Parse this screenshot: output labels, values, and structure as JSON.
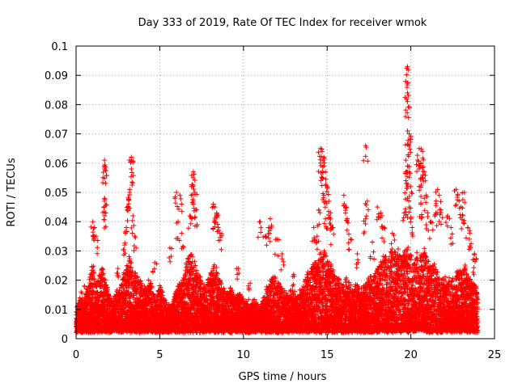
{
  "chart_data": {
    "type": "scatter",
    "title": "Day 333 of 2019, Rate Of TEC Index for receiver wmok",
    "xlabel": "GPS time / hours",
    "ylabel": "ROTI / TECUs",
    "xlim": [
      0,
      25
    ],
    "ylim": [
      0,
      0.1
    ],
    "x_ticks": [
      "0",
      "5",
      "10",
      "15",
      "20",
      "25"
    ],
    "y_ticks": [
      "0",
      "0.01",
      "0.02",
      "0.03",
      "0.04",
      "0.05",
      "0.06",
      "0.07",
      "0.08",
      "0.09",
      "0.1"
    ],
    "grid": true,
    "legend": "none",
    "marker": "+",
    "marker_color": "#ff0000",
    "baseline_points": [
      [
        0.0,
        0.009
      ],
      [
        0.2,
        0.014
      ],
      [
        0.4,
        0.011
      ],
      [
        0.6,
        0.016
      ],
      [
        0.8,
        0.021
      ],
      [
        1.0,
        0.026
      ],
      [
        1.2,
        0.019
      ],
      [
        1.4,
        0.022
      ],
      [
        1.6,
        0.025
      ],
      [
        1.8,
        0.018
      ],
      [
        2.0,
        0.015
      ],
      [
        2.2,
        0.013
      ],
      [
        2.4,
        0.017
      ],
      [
        2.6,
        0.016
      ],
      [
        2.8,
        0.021
      ],
      [
        3.0,
        0.024
      ],
      [
        3.2,
        0.028
      ],
      [
        3.4,
        0.026
      ],
      [
        3.6,
        0.022
      ],
      [
        3.8,
        0.02
      ],
      [
        4.0,
        0.018
      ],
      [
        4.2,
        0.017
      ],
      [
        4.4,
        0.021
      ],
      [
        4.6,
        0.016
      ],
      [
        4.8,
        0.014
      ],
      [
        5.0,
        0.019
      ],
      [
        5.2,
        0.015
      ],
      [
        5.4,
        0.012
      ],
      [
        5.6,
        0.011
      ],
      [
        5.8,
        0.013
      ],
      [
        6.0,
        0.017
      ],
      [
        6.2,
        0.019
      ],
      [
        6.4,
        0.02
      ],
      [
        6.6,
        0.026
      ],
      [
        6.8,
        0.03
      ],
      [
        7.0,
        0.028
      ],
      [
        7.2,
        0.024
      ],
      [
        7.4,
        0.021
      ],
      [
        7.6,
        0.018
      ],
      [
        7.8,
        0.019
      ],
      [
        8.0,
        0.022
      ],
      [
        8.2,
        0.026
      ],
      [
        8.4,
        0.024
      ],
      [
        8.6,
        0.021
      ],
      [
        8.8,
        0.018
      ],
      [
        9.0,
        0.016
      ],
      [
        9.2,
        0.017
      ],
      [
        9.4,
        0.015
      ],
      [
        9.6,
        0.014
      ],
      [
        9.8,
        0.016
      ],
      [
        10.0,
        0.014
      ],
      [
        10.2,
        0.012
      ],
      [
        10.4,
        0.011
      ],
      [
        10.6,
        0.013
      ],
      [
        10.8,
        0.012
      ],
      [
        11.0,
        0.011
      ],
      [
        11.2,
        0.015
      ],
      [
        11.4,
        0.017
      ],
      [
        11.6,
        0.019
      ],
      [
        11.8,
        0.022
      ],
      [
        12.0,
        0.02
      ],
      [
        12.2,
        0.018
      ],
      [
        12.4,
        0.016
      ],
      [
        12.6,
        0.015
      ],
      [
        12.8,
        0.017
      ],
      [
        13.0,
        0.016
      ],
      [
        13.2,
        0.014
      ],
      [
        13.4,
        0.016
      ],
      [
        13.6,
        0.018
      ],
      [
        13.8,
        0.022
      ],
      [
        14.0,
        0.024
      ],
      [
        14.2,
        0.027
      ],
      [
        14.4,
        0.026
      ],
      [
        14.6,
        0.029
      ],
      [
        14.8,
        0.031
      ],
      [
        15.0,
        0.028
      ],
      [
        15.2,
        0.026
      ],
      [
        15.4,
        0.023
      ],
      [
        15.6,
        0.021
      ],
      [
        15.8,
        0.02
      ],
      [
        16.0,
        0.019
      ],
      [
        16.2,
        0.021
      ],
      [
        16.4,
        0.018
      ],
      [
        16.6,
        0.017
      ],
      [
        16.8,
        0.019
      ],
      [
        17.0,
        0.016
      ],
      [
        17.2,
        0.018
      ],
      [
        17.4,
        0.02
      ],
      [
        17.6,
        0.022
      ],
      [
        17.8,
        0.021
      ],
      [
        18.0,
        0.024
      ],
      [
        18.2,
        0.026
      ],
      [
        18.4,
        0.028
      ],
      [
        18.6,
        0.027
      ],
      [
        18.8,
        0.03
      ],
      [
        19.0,
        0.029
      ],
      [
        19.2,
        0.031
      ],
      [
        19.4,
        0.028
      ],
      [
        19.6,
        0.03
      ],
      [
        19.8,
        0.032
      ],
      [
        20.0,
        0.029
      ],
      [
        20.2,
        0.026
      ],
      [
        20.4,
        0.03
      ],
      [
        20.6,
        0.028
      ],
      [
        20.8,
        0.031
      ],
      [
        21.0,
        0.027
      ],
      [
        21.2,
        0.024
      ],
      [
        21.4,
        0.026
      ],
      [
        21.6,
        0.022
      ],
      [
        21.8,
        0.02
      ],
      [
        22.0,
        0.021
      ],
      [
        22.2,
        0.019
      ],
      [
        22.4,
        0.022
      ],
      [
        22.6,
        0.02
      ],
      [
        22.8,
        0.024
      ],
      [
        23.0,
        0.022
      ],
      [
        23.2,
        0.026
      ],
      [
        23.4,
        0.023
      ],
      [
        23.6,
        0.02
      ],
      [
        23.8,
        0.018
      ],
      [
        24.0,
        0.016
      ]
    ],
    "points": [
      [
        1.7,
        0.061
      ],
      [
        1.7,
        0.059
      ],
      [
        1.7,
        0.058
      ],
      [
        1.7,
        0.048
      ],
      [
        1.7,
        0.047
      ],
      [
        1.7,
        0.042
      ],
      [
        1.0,
        0.04
      ],
      [
        1.1,
        0.038
      ],
      [
        1.2,
        0.035
      ],
      [
        3.3,
        0.062
      ],
      [
        3.3,
        0.061
      ],
      [
        3.3,
        0.058
      ],
      [
        3.2,
        0.051
      ],
      [
        3.2,
        0.05
      ],
      [
        3.1,
        0.045
      ],
      [
        3.4,
        0.042
      ],
      [
        3.0,
        0.038
      ],
      [
        3.5,
        0.035
      ],
      [
        2.9,
        0.032
      ],
      [
        6.0,
        0.05
      ],
      [
        6.2,
        0.049
      ],
      [
        6.1,
        0.04
      ],
      [
        6.3,
        0.036
      ],
      [
        7.0,
        0.057
      ],
      [
        7.0,
        0.055
      ],
      [
        6.9,
        0.052
      ],
      [
        7.1,
        0.05
      ],
      [
        7.0,
        0.046
      ],
      [
        7.2,
        0.044
      ],
      [
        6.8,
        0.042
      ],
      [
        8.2,
        0.046
      ],
      [
        8.3,
        0.045
      ],
      [
        8.4,
        0.043
      ],
      [
        8.3,
        0.04
      ],
      [
        8.5,
        0.038
      ],
      [
        8.6,
        0.036
      ],
      [
        11.6,
        0.041
      ],
      [
        11.5,
        0.038
      ],
      [
        11.3,
        0.035
      ],
      [
        11.0,
        0.04
      ],
      [
        12.0,
        0.034
      ],
      [
        12.3,
        0.029
      ],
      [
        14.2,
        0.038
      ],
      [
        14.4,
        0.035
      ],
      [
        14.6,
        0.065
      ],
      [
        14.7,
        0.064
      ],
      [
        14.8,
        0.062
      ],
      [
        14.6,
        0.06
      ],
      [
        14.9,
        0.057
      ],
      [
        14.7,
        0.055
      ],
      [
        15.0,
        0.052
      ],
      [
        14.8,
        0.049
      ],
      [
        15.1,
        0.047
      ],
      [
        14.5,
        0.044
      ],
      [
        15.2,
        0.043
      ],
      [
        14.9,
        0.041
      ],
      [
        15.3,
        0.038
      ],
      [
        16.0,
        0.049
      ],
      [
        16.1,
        0.045
      ],
      [
        16.2,
        0.041
      ],
      [
        16.4,
        0.034
      ],
      [
        17.3,
        0.066
      ],
      [
        17.4,
        0.047
      ],
      [
        17.3,
        0.041
      ],
      [
        18.0,
        0.045
      ],
      [
        18.2,
        0.043
      ],
      [
        18.4,
        0.038
      ],
      [
        19.8,
        0.093
      ],
      [
        19.7,
        0.088
      ],
      [
        19.8,
        0.084
      ],
      [
        19.8,
        0.081
      ],
      [
        19.8,
        0.071
      ],
      [
        19.9,
        0.07
      ],
      [
        19.9,
        0.066
      ],
      [
        19.7,
        0.061
      ],
      [
        19.8,
        0.059
      ],
      [
        19.9,
        0.057
      ],
      [
        19.7,
        0.054
      ],
      [
        20.0,
        0.052
      ],
      [
        19.8,
        0.048
      ],
      [
        19.9,
        0.045
      ],
      [
        19.6,
        0.043
      ],
      [
        20.0,
        0.041
      ],
      [
        20.5,
        0.065
      ],
      [
        20.7,
        0.064
      ],
      [
        20.6,
        0.06
      ],
      [
        20.4,
        0.061
      ],
      [
        20.8,
        0.057
      ],
      [
        20.7,
        0.055
      ],
      [
        20.5,
        0.052
      ],
      [
        20.9,
        0.049
      ],
      [
        20.6,
        0.046
      ],
      [
        21.0,
        0.043
      ],
      [
        21.2,
        0.04
      ],
      [
        21.6,
        0.051
      ],
      [
        21.7,
        0.049
      ],
      [
        21.8,
        0.044
      ],
      [
        21.5,
        0.043
      ],
      [
        22.2,
        0.042
      ],
      [
        22.4,
        0.038
      ],
      [
        22.7,
        0.051
      ],
      [
        22.8,
        0.049
      ],
      [
        23.0,
        0.045
      ],
      [
        23.2,
        0.05
      ],
      [
        23.1,
        0.042
      ],
      [
        23.4,
        0.038
      ],
      [
        23.5,
        0.034
      ],
      [
        23.8,
        0.029
      ],
      [
        23.7,
        0.027
      ],
      [
        0.3,
        0.016
      ],
      [
        0.5,
        0.018
      ],
      [
        2.5,
        0.024
      ],
      [
        4.7,
        0.026
      ],
      [
        5.6,
        0.031
      ],
      [
        9.7,
        0.024
      ],
      [
        10.4,
        0.019
      ],
      [
        13.0,
        0.022
      ],
      [
        16.8,
        0.029
      ],
      [
        17.7,
        0.033
      ],
      [
        18.9,
        0.036
      ]
    ]
  }
}
